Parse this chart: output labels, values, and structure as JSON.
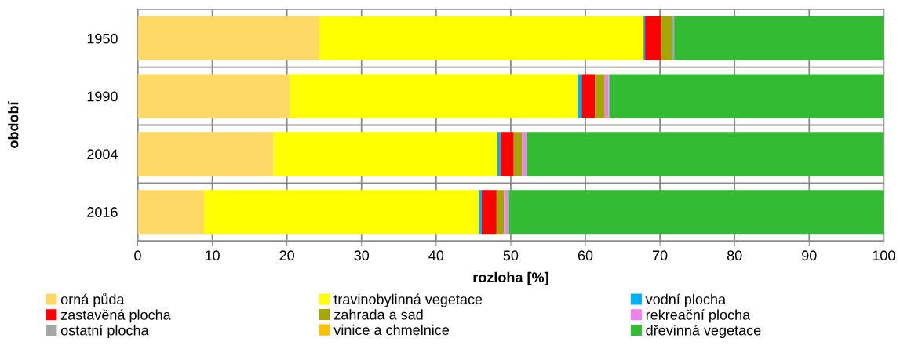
{
  "chart_data": {
    "type": "bar",
    "orientation": "horizontal",
    "stacked": true,
    "xlabel": "rozloha [%]",
    "ylabel": "období",
    "categories": [
      "1950",
      "1990",
      "2004",
      "2016"
    ],
    "series": [
      {
        "name": "orná půda",
        "color": "#ffd966",
        "values": [
          24.3,
          20.4,
          18.2,
          8.9
        ]
      },
      {
        "name": "travinobylinná vegetace",
        "color": "#ffff00",
        "values": [
          43.5,
          38.6,
          30.0,
          36.8
        ]
      },
      {
        "name": "vodní plocha",
        "color": "#00b0f0",
        "values": [
          0.2,
          0.5,
          0.4,
          0.4
        ]
      },
      {
        "name": "zastavěná plocha",
        "color": "#ff0000",
        "values": [
          2.1,
          1.8,
          1.8,
          2.0
        ]
      },
      {
        "name": "zahrada a sad",
        "color": "#a6a600",
        "values": [
          1.5,
          1.3,
          1.1,
          1.0
        ]
      },
      {
        "name": "rekreační plocha",
        "color": "#ee82ee",
        "values": [
          0.0,
          0.5,
          0.6,
          0.4
        ]
      },
      {
        "name": "ostatní plocha",
        "color": "#a6a6a6",
        "values": [
          0.3,
          0.2,
          null,
          0.3
        ]
      },
      {
        "name": "vinice a chmelnice",
        "color": "#ffc000",
        "values": [
          0.0,
          0.0,
          0.0,
          0.0
        ]
      },
      {
        "name": "dřevinná vegetace",
        "color": "#33bb33",
        "values": [
          28.1,
          36.7,
          47.8,
          50.2
        ]
      }
    ],
    "xlim": [
      0,
      100
    ],
    "xticks": [
      0,
      10,
      20,
      30,
      40,
      50,
      60,
      70,
      80,
      90,
      100
    ],
    "grid": true,
    "legend": "bottom"
  }
}
